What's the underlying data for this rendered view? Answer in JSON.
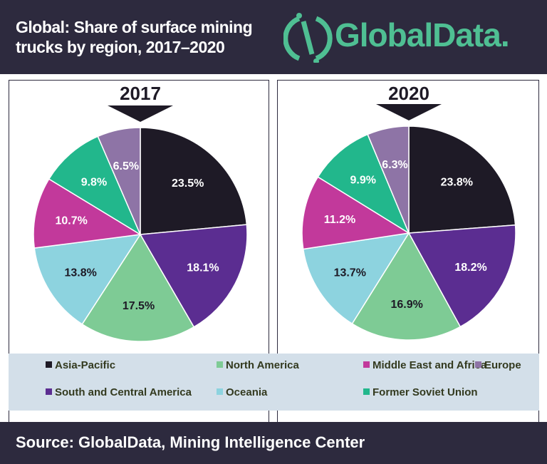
{
  "header": {
    "title_line1": "Global: Share of surface mining",
    "title_line2": "trucks by region, 2017–2020",
    "logo": "GlobalData."
  },
  "footer": {
    "source": "Source: GlobalData, Mining Intelligence Center"
  },
  "chart_data": [
    {
      "type": "pie",
      "title": "2017",
      "categories": [
        "Asia-Pacific",
        "South and Central America",
        "North America",
        "Oceania",
        "Middle East and Africa",
        "Former Soviet Union",
        "Europe"
      ],
      "values": [
        23.5,
        18.1,
        17.5,
        13.8,
        10.7,
        9.8,
        6.5
      ],
      "labels": [
        "23.5%",
        "18.1%",
        "17.5%",
        "13.8%",
        "10.7%",
        "9.8%",
        "6.5%"
      ]
    },
    {
      "type": "pie",
      "title": "2020",
      "categories": [
        "Asia-Pacific",
        "South and Central America",
        "North America",
        "Oceania",
        "Middle East and Africa",
        "Former Soviet Union",
        "Europe"
      ],
      "values": [
        23.8,
        18.2,
        16.9,
        13.7,
        11.2,
        9.9,
        6.3
      ],
      "labels": [
        "23.8%",
        "18.2%",
        "16.9%",
        "13.7%",
        "11.2%",
        "9.9%",
        "6.3%"
      ]
    }
  ],
  "colors": {
    "Asia-Pacific": "#1e1a26",
    "South and Central America": "#5b2d91",
    "North America": "#7ecb95",
    "Oceania": "#8dd3df",
    "Middle East and Africa": "#c2399b",
    "Former Soviet Union": "#22b78c",
    "Europe": "#8e74a6"
  },
  "legend": [
    "Asia-Pacific",
    "North America",
    "Middle East and Africa",
    "Europe",
    "South and Central America",
    "Oceania",
    "Former Soviet Union"
  ]
}
